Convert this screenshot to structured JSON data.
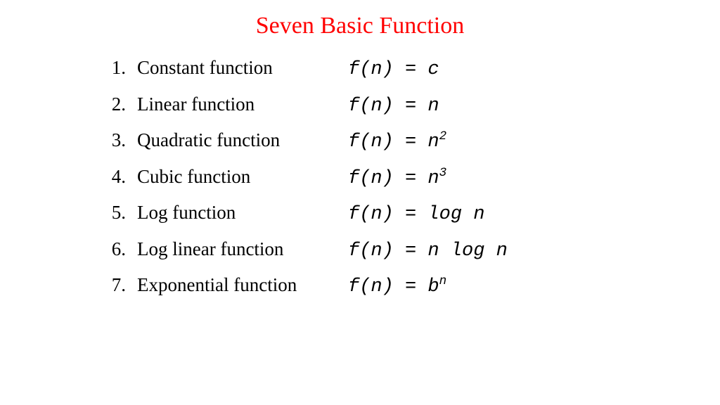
{
  "title": {
    "text": "Seven Basic Function",
    "color": "#ff0000",
    "fontsize": 34
  },
  "text_color": "#000000",
  "formula_font": "Courier New",
  "label_font": "Times New Roman",
  "background_color": "#ffffff",
  "items": [
    {
      "num": "1.",
      "label": "Constant function",
      "formula_base": "f(n) = c",
      "formula_sup": ""
    },
    {
      "num": "2.",
      "label": "Linear function",
      "formula_base": "f(n) = n",
      "formula_sup": ""
    },
    {
      "num": "3.",
      "label": "Quadratic function",
      "formula_base": "f(n) = n",
      "formula_sup": "2"
    },
    {
      "num": "4.",
      "label": "Cubic function",
      "formula_base": "f(n) = n",
      "formula_sup": "3"
    },
    {
      "num": "5.",
      "label": "Log function",
      "formula_base": "f(n) = log n",
      "formula_sup": ""
    },
    {
      "num": "6.",
      "label": "Log linear function",
      "formula_base": "f(n) = n log n",
      "formula_sup": ""
    },
    {
      "num": "7.",
      "label": "Exponential function",
      "formula_base": "f(n) = b",
      "formula_sup": "n"
    }
  ]
}
